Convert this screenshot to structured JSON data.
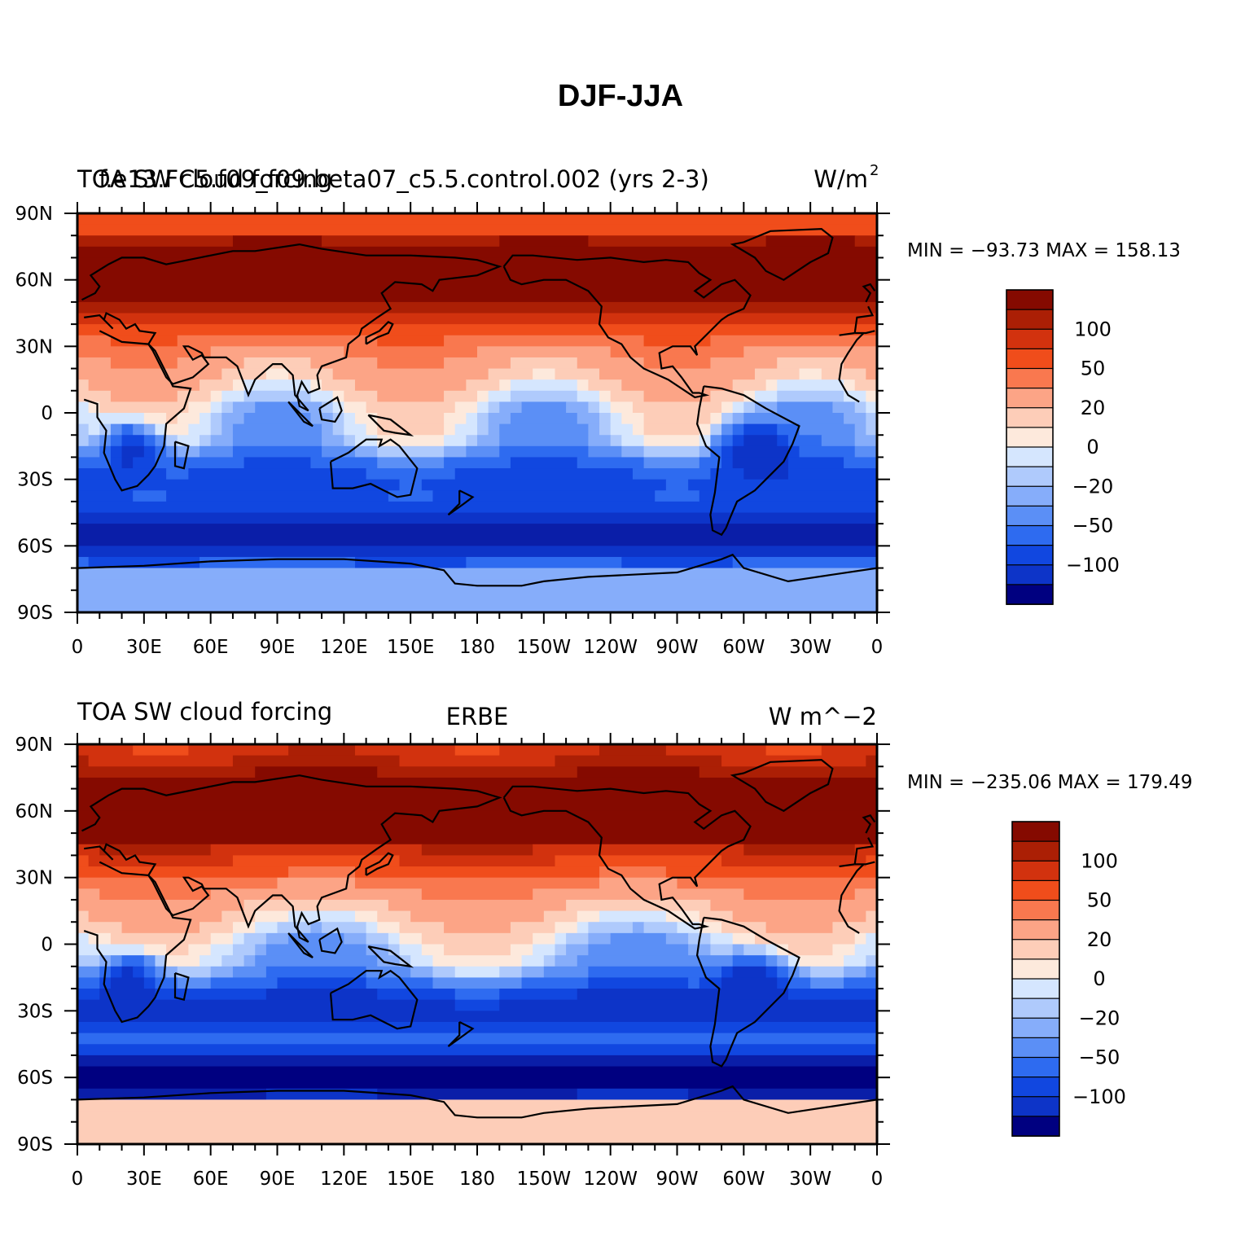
{
  "title": "DJF-JJA",
  "colors": {
    "levels": [
      "#000080",
      "#0a1ea8",
      "#0d34c8",
      "#1147e0",
      "#2e6bf0",
      "#5b8ff6",
      "#86adfa",
      "#afcafc",
      "#d5e6fe",
      "#fde9dc",
      "#fdcdb8",
      "#fca486",
      "#f9784f",
      "#f04d1b",
      "#d2320e",
      "#ab1f05",
      "#850a00"
    ],
    "coast": "#000000"
  },
  "chart_data": [
    {
      "type": "heatmap",
      "title_left": "TOA SW cloud forcing",
      "title_center": "f.e13.FC5.f09_f09.beta07_c5.5.control.002 (yrs 2-3)",
      "title_right": "W/m",
      "title_right_sup": "2",
      "stats": "MIN = −93.73 MAX = 158.13",
      "x_ticks": [
        "0",
        "30E",
        "60E",
        "90E",
        "120E",
        "150E",
        "180",
        "150W",
        "120W",
        "90W",
        "60W",
        "30W",
        "0"
      ],
      "y_ticks": [
        "90N",
        "60N",
        "30N",
        "0",
        "30S",
        "60S",
        "90S"
      ],
      "colorbar_labels": [
        "100",
        "50",
        "20",
        "0",
        "−20",
        "−50",
        "−100"
      ],
      "min": -93.73,
      "max": 158.13
    },
    {
      "type": "heatmap",
      "title_left": "TOA SW cloud forcing",
      "title_center": "ERBE",
      "title_right": "W m^−2",
      "title_right_sup": "",
      "stats": "MIN = −235.06 MAX = 179.49",
      "x_ticks": [
        "0",
        "30E",
        "60E",
        "90E",
        "120E",
        "150E",
        "180",
        "150W",
        "120W",
        "90W",
        "60W",
        "30W",
        "0"
      ],
      "y_ticks": [
        "90N",
        "60N",
        "30N",
        "0",
        "30S",
        "60S",
        "90S"
      ],
      "colorbar_labels": [
        "100",
        "50",
        "20",
        "0",
        "−20",
        "−50",
        "−100"
      ],
      "min": -235.06,
      "max": 179.49
    }
  ]
}
